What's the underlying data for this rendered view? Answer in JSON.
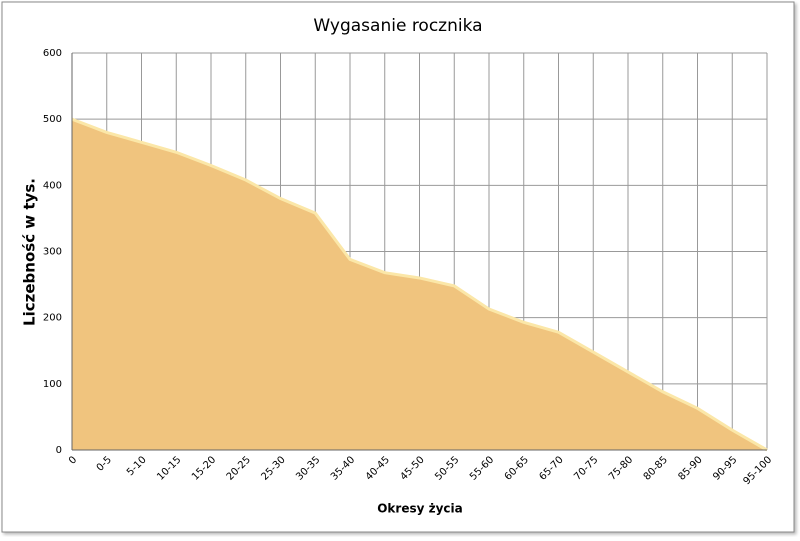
{
  "chart_data": {
    "type": "area",
    "title": "Wygasanie rocznika",
    "x_label": "Okresy  życia",
    "y_label": "Liczebność w tys.",
    "categories": [
      "0",
      "0-5",
      "5-10",
      "10-15",
      "15-20",
      "20-25",
      "25-30",
      "30-35",
      "35-40",
      "40-45",
      "45-50",
      "50-55",
      "55-60",
      "60-65",
      "65-70",
      "70-75",
      "75-80",
      "80-85",
      "85-90",
      "90-95",
      "95-100"
    ],
    "values": [
      500,
      480,
      465,
      450,
      430,
      408,
      380,
      358,
      288,
      268,
      260,
      248,
      213,
      193,
      178,
      148,
      118,
      88,
      63,
      30,
      0
    ],
    "color": "#f0c47e",
    "ylim": [
      0,
      600
    ],
    "yticks": [
      0,
      100,
      200,
      300,
      400,
      500,
      600
    ],
    "grid": true
  }
}
